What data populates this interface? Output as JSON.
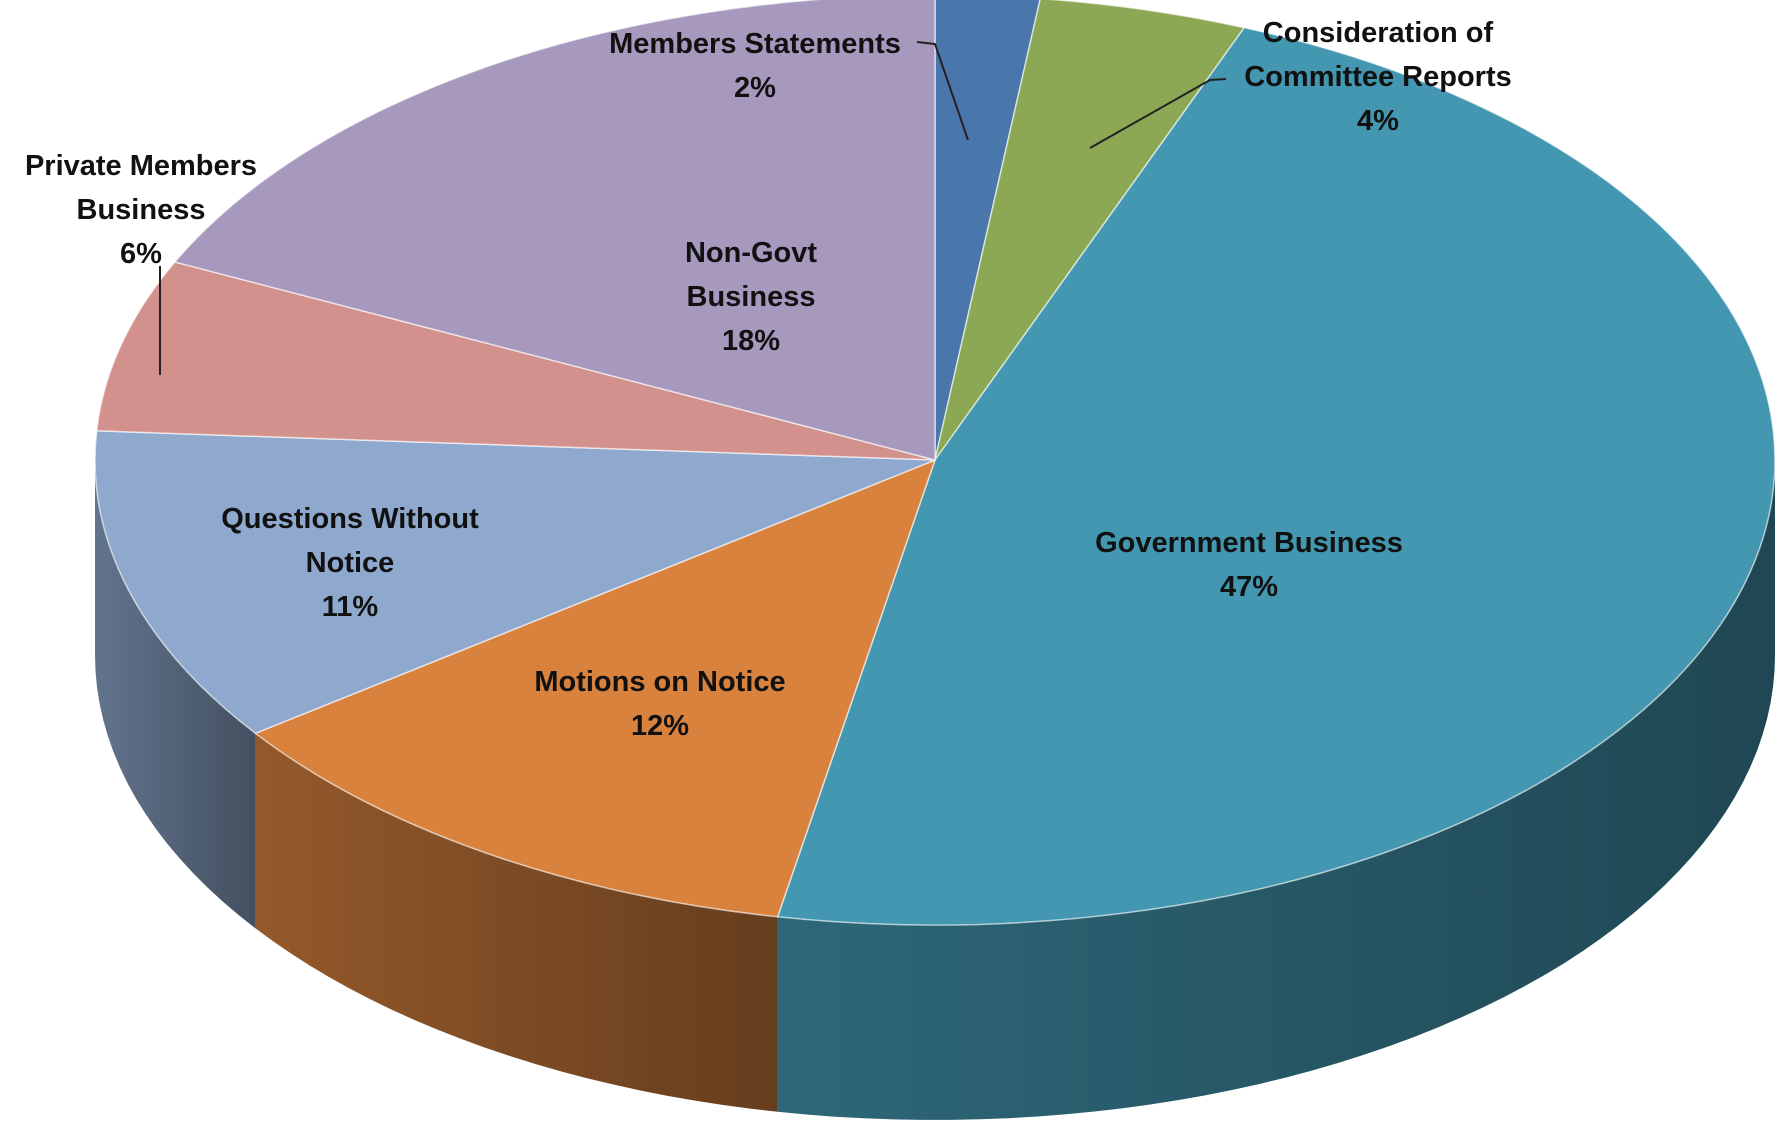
{
  "chart_data": {
    "type": "pie",
    "style": "3d",
    "title": "",
    "slices": [
      {
        "name": "Members Statements",
        "label_lines": [
          "Members Statements"
        ],
        "value": 2,
        "value_label": "2%",
        "color": "#4a77ab"
      },
      {
        "name": "Consideration of Committee Reports",
        "label_lines": [
          "Consideration of",
          "Committee Reports"
        ],
        "value": 4,
        "value_label": "4%",
        "color": "#8ca855"
      },
      {
        "name": "Government Business",
        "label_lines": [
          "Government Business"
        ],
        "value": 47,
        "value_label": "47%",
        "color": "#4397b0"
      },
      {
        "name": "Motions on Notice",
        "label_lines": [
          "Motions on Notice"
        ],
        "value": 12,
        "value_label": "12%",
        "color": "#d9823e"
      },
      {
        "name": "Questions Without Notice",
        "label_lines": [
          "Questions Without",
          "Notice"
        ],
        "value": 11,
        "value_label": "11%",
        "color": "#8fa9ce"
      },
      {
        "name": "Private Members Business",
        "label_lines": [
          "Private Members",
          "Business"
        ],
        "value": 6,
        "value_label": "6%",
        "color": "#d3918d"
      },
      {
        "name": "Non-Govt Business",
        "label_lines": [
          "Non-Govt",
          "Business"
        ],
        "value": 18,
        "value_label": "18%",
        "color": "#a699bd"
      }
    ]
  }
}
